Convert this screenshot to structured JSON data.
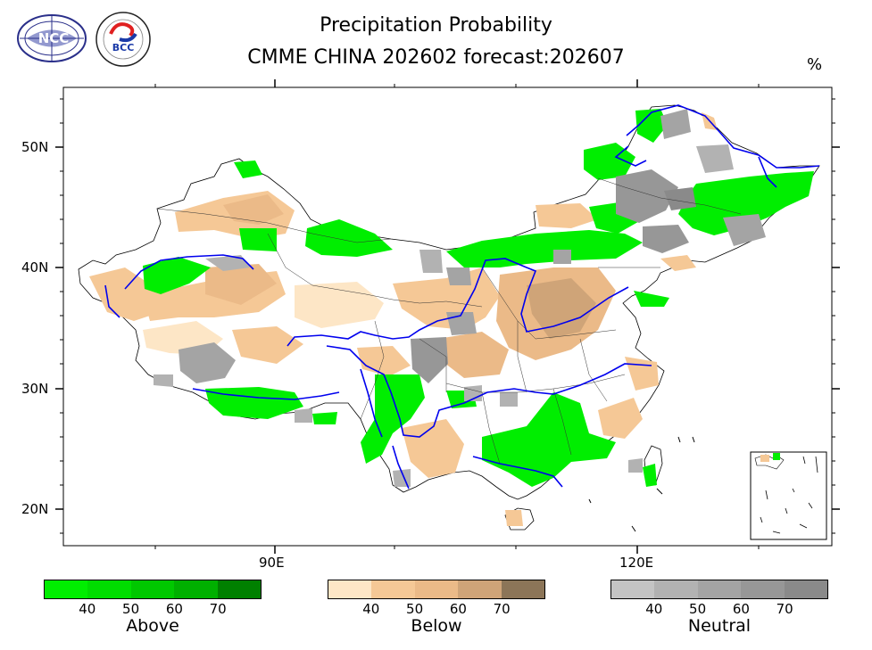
{
  "title": {
    "line1": "Precipitation Probability",
    "line2": "CMME CHINA 202602 forecast:202607",
    "unit": "%"
  },
  "logos": [
    {
      "name": "NCC",
      "text": "NCC"
    },
    {
      "name": "BCC",
      "text": "BCC"
    }
  ],
  "map": {
    "lat_labels": [
      "50N",
      "40N",
      "30N",
      "20N"
    ],
    "lon_labels": [
      "90E",
      "120E"
    ],
    "colors": {
      "river": "#0000ee",
      "border": "#000000"
    }
  },
  "legends": [
    {
      "name": "Above",
      "ticks": [
        "40",
        "50",
        "60",
        "70"
      ],
      "colors": [
        "#00ee00",
        "#00dd00",
        "#00c800",
        "#00b000",
        "#008000"
      ]
    },
    {
      "name": "Below",
      "ticks": [
        "40",
        "50",
        "60",
        "70"
      ],
      "colors": [
        "#fde6c6",
        "#f5c896",
        "#ebba88",
        "#cfa478",
        "#8c7558"
      ]
    },
    {
      "name": "Neutral",
      "ticks": [
        "40",
        "50",
        "60",
        "70"
      ],
      "colors": [
        "#c4c4c4",
        "#b2b2b2",
        "#a4a4a4",
        "#979797",
        "#8a8a8a"
      ]
    }
  ]
}
